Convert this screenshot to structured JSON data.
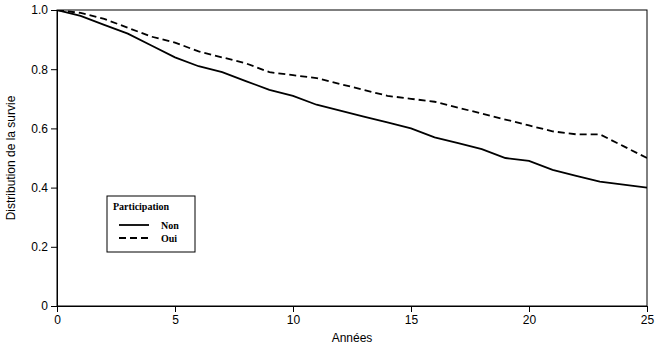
{
  "chart_data": {
    "type": "line",
    "x_label": "Années",
    "y_label": "Distribution de la survie",
    "legend_title": "Participation",
    "x": [
      0,
      1,
      2,
      3,
      4,
      5,
      6,
      7,
      8,
      9,
      10,
      11,
      12,
      13,
      14,
      15,
      16,
      17,
      18,
      19,
      20,
      21,
      22,
      23,
      24,
      25
    ],
    "series": [
      {
        "name": "Non",
        "color": "#000000",
        "line_style": "solid",
        "values": [
          1.0,
          0.98,
          0.95,
          0.92,
          0.88,
          0.84,
          0.81,
          0.79,
          0.76,
          0.73,
          0.71,
          0.68,
          0.66,
          0.64,
          0.62,
          0.6,
          0.57,
          0.55,
          0.53,
          0.5,
          0.49,
          0.46,
          0.44,
          0.42,
          0.41,
          0.4
        ]
      },
      {
        "name": "Oui",
        "color": "#000000",
        "line_style": "dashed",
        "values": [
          1.0,
          0.99,
          0.97,
          0.94,
          0.91,
          0.89,
          0.86,
          0.84,
          0.82,
          0.79,
          0.78,
          0.77,
          0.75,
          0.73,
          0.71,
          0.7,
          0.69,
          0.67,
          0.65,
          0.63,
          0.61,
          0.59,
          0.58,
          0.58,
          0.54,
          0.5
        ]
      }
    ],
    "xlim": [
      0,
      25
    ],
    "xticks": [
      0,
      5,
      10,
      15,
      20,
      25
    ],
    "ylim": [
      0,
      1
    ],
    "yticks": [
      0,
      0.2,
      0.4,
      0.6,
      0.8,
      {
        "value": 1,
        "label": "1.0"
      }
    ],
    "grid": false,
    "legend": "lower-left"
  }
}
